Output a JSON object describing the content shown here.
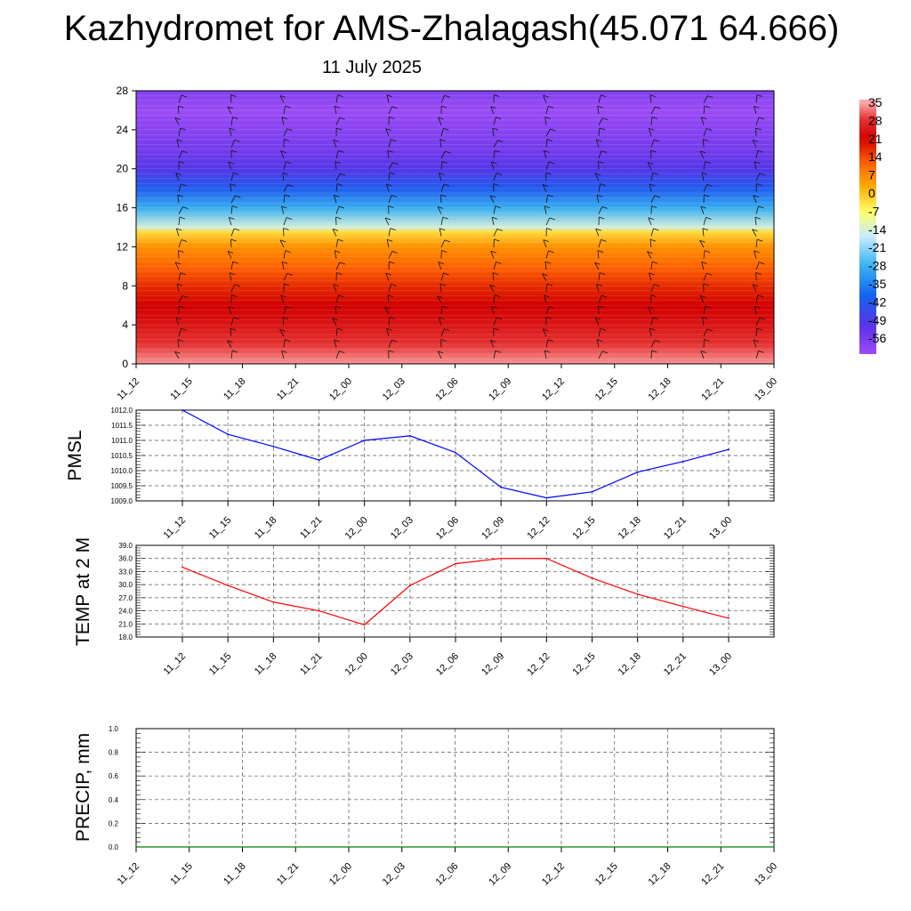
{
  "title": "Kazhydromet for AMS-Zhalagash(45.071 64.666)",
  "subtitle": "11 July 2025",
  "time_labels": [
    "11_12",
    "11_15",
    "11_18",
    "11_21",
    "12_00",
    "12_03",
    "12_06",
    "12_09",
    "12_12",
    "12_15",
    "12_18",
    "12_21",
    "13_00"
  ],
  "chart_data": [
    {
      "type": "heatmap",
      "x": [
        "11_12",
        "11_15",
        "11_18",
        "11_21",
        "12_00",
        "12_03",
        "12_06",
        "12_09",
        "12_12",
        "12_15",
        "12_18",
        "12_21",
        "13_00"
      ],
      "ylim": [
        0,
        28
      ],
      "yticks": [
        0,
        4,
        8,
        12,
        16,
        20,
        24,
        28
      ],
      "colorbar_labels": [
        "35",
        "28",
        "21",
        "14",
        "7",
        "0",
        "-7",
        "-14",
        "-21",
        "-28",
        "-35",
        "-42",
        "-49",
        "-56"
      ],
      "colorbar_range": [
        -56,
        35
      ],
      "colors": [
        "#ffbebe",
        "#e53232",
        "#d20000",
        "#ff6400",
        "#ffaa00",
        "#ffff66",
        "#c8ebff",
        "#3cb4f0",
        "#1464f0",
        "#5a32e6",
        "#9b4bf5"
      ],
      "profile": {
        "levels": [
          0,
          2,
          4,
          6,
          8,
          10,
          12,
          13.5,
          14,
          16,
          18,
          20,
          22,
          24,
          26,
          28
        ],
        "values": [
          33,
          28,
          24,
          21,
          17,
          12,
          7,
          -1,
          -12,
          -25,
          -37,
          -45,
          -50,
          -53,
          -56,
          -52
        ]
      }
    },
    {
      "type": "line",
      "ylabel": "PMSL",
      "x": [
        "11_12",
        "11_15",
        "11_18",
        "11_21",
        "12_00",
        "12_03",
        "12_06",
        "12_09",
        "12_12",
        "12_15",
        "12_18",
        "12_21",
        "13_00"
      ],
      "values": [
        1012.0,
        1011.2,
        1010.8,
        1010.35,
        1011.0,
        1011.15,
        1010.6,
        1009.45,
        1009.1,
        1009.3,
        1009.95,
        1010.3,
        1010.7
      ],
      "ylim": [
        1009.0,
        1012.0
      ],
      "yticks": [
        "1009.0",
        "1009.5",
        "1010.0",
        "1010.5",
        "1011.0",
        "1011.5",
        "1012.0"
      ],
      "color": "#0000ff",
      "grid": true
    },
    {
      "type": "line",
      "ylabel": "TEMP at 2 M",
      "x": [
        "11_12",
        "11_15",
        "11_18",
        "11_21",
        "12_00",
        "12_03",
        "12_06",
        "12_09",
        "12_12",
        "12_15",
        "12_18",
        "12_21",
        "13_00"
      ],
      "values": [
        34.0,
        29.8,
        26.0,
        24.0,
        20.8,
        29.8,
        34.8,
        36.0,
        36.0,
        31.5,
        27.8,
        25.0,
        22.3
      ],
      "ylim": [
        18.0,
        39.0
      ],
      "yticks": [
        "18.0",
        "21.0",
        "24.0",
        "27.0",
        "30.0",
        "33.0",
        "36.0",
        "39.0"
      ],
      "color": "#ff0000",
      "grid": true
    },
    {
      "type": "line",
      "ylabel": "PRECIP, mm",
      "x": [
        "11_12",
        "11_15",
        "11_18",
        "11_21",
        "12_00",
        "12_03",
        "12_06",
        "12_09",
        "12_12",
        "12_15",
        "12_18",
        "12_21",
        "13_00"
      ],
      "values": [
        0,
        0,
        0,
        0,
        0,
        0,
        0,
        0,
        0,
        0,
        0,
        0,
        0
      ],
      "ylim": [
        0.0,
        1.0
      ],
      "yticks": [
        "0.0",
        "0.2",
        "0.4",
        "0.6",
        "0.8",
        "1.0"
      ],
      "color": "#008000",
      "grid": true
    }
  ]
}
